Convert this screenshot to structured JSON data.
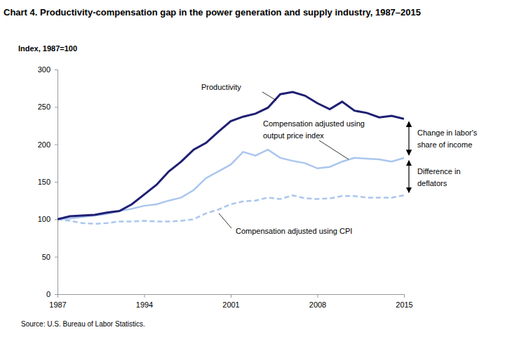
{
  "chart_data": {
    "type": "line",
    "title": "Chart 4. Productivity-compensation gap in the power generation and supply industry, 1987–2015",
    "y_label": "Index, 1987=100",
    "source": "Source: U.S. Bureau of Labor Statistics.",
    "x": [
      1987,
      1988,
      1989,
      1990,
      1991,
      1992,
      1993,
      1994,
      1995,
      1996,
      1997,
      1998,
      1999,
      2000,
      2001,
      2002,
      2003,
      2004,
      2005,
      2006,
      2007,
      2008,
      2009,
      2010,
      2011,
      2012,
      2013,
      2014,
      2015
    ],
    "series": [
      {
        "name": "Productivity",
        "color": "#1f1f74",
        "line_style": "solid",
        "values": [
          100,
          104,
          105,
          106,
          109,
          111,
          120,
          133,
          146,
          164,
          177,
          193,
          202,
          217,
          231,
          237,
          241,
          249,
          267,
          270,
          265,
          255,
          247,
          257,
          245,
          242,
          236,
          238,
          234
        ]
      },
      {
        "name": "Compensation adjusted using output price index",
        "color": "#aac6ee",
        "line_style": "solid",
        "values": [
          100,
          101,
          103,
          105,
          107,
          111,
          114,
          118,
          120,
          125,
          129,
          139,
          155,
          164,
          173,
          190,
          185,
          193,
          182,
          178,
          175,
          168,
          170,
          177,
          182,
          181,
          180,
          177,
          182
        ]
      },
      {
        "name": "Compensation adjusted using CPI",
        "color": "#aac6ee",
        "line_style": "dashed",
        "values": [
          100,
          98,
          95,
          94,
          95,
          97,
          97,
          98,
          97,
          97,
          98,
          100,
          108,
          113,
          120,
          124,
          125,
          129,
          127,
          132,
          128,
          127,
          128,
          131,
          131,
          129,
          129,
          129,
          132
        ]
      }
    ],
    "annotations": [
      {
        "text": "Change in labor's share of income"
      },
      {
        "text": "Difference in deflators"
      }
    ],
    "xlim": [
      1987,
      2015
    ],
    "xticks": [
      1987,
      1994,
      2001,
      2008,
      2015
    ],
    "ylim": [
      0,
      300
    ],
    "yticks": [
      0,
      50,
      100,
      150,
      200,
      250,
      300
    ],
    "grid": false
  }
}
